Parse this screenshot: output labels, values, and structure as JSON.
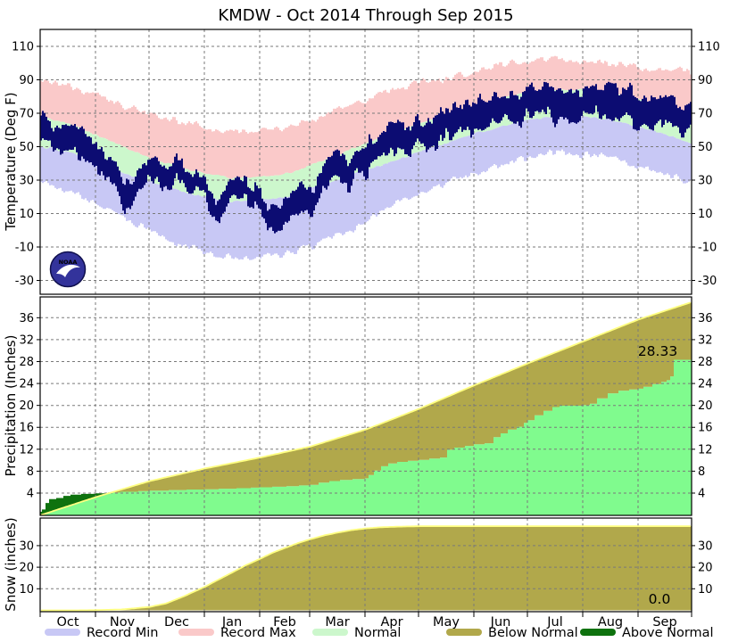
{
  "title": "KMDW - Oct 2014 Through Sep 2015",
  "logo": {
    "text": "NOAA"
  },
  "x_axis": {
    "month_labels": [
      "Oct",
      "Nov",
      "Dec",
      "Jan",
      "Feb",
      "Mar",
      "Apr",
      "May",
      "Jun",
      "Jul",
      "Aug",
      "Sep"
    ],
    "month_start_days": [
      0,
      31,
      61,
      92,
      123,
      151,
      182,
      212,
      243,
      273,
      304,
      335,
      365
    ]
  },
  "colors": {
    "record_min": "#c8c8f5",
    "record_max": "#fac9c9",
    "normal_band": "#ccf7cc",
    "actual_temperature": "#0c0c72",
    "actual_precip": "#80fb8e",
    "below_normal": "#b1a84b",
    "above_normal": "#0e720e",
    "normal_line": "#ffff80",
    "grid": "#7a7a7a",
    "axis": "#000000"
  },
  "legend": {
    "items": [
      {
        "label": "Record Min",
        "color": "#c8c8f5"
      },
      {
        "label": "Record Max",
        "color": "#fac9c9"
      },
      {
        "label": "Normal",
        "color": "#ccf7cc"
      },
      {
        "label": "Below Normal",
        "color": "#b1a84b"
      },
      {
        "label": "Above Normal",
        "color": "#0e720e"
      }
    ]
  },
  "chart_data": [
    {
      "id": "temperature",
      "type": "band-area",
      "ylabel": "Temperature (Deg F)",
      "yticks": [
        110,
        90,
        70,
        50,
        30,
        10,
        -10,
        -30
      ],
      "ylim": [
        -38,
        120
      ],
      "series": {
        "record_high": [
          [
            0,
            90
          ],
          [
            15,
            87
          ],
          [
            46,
            74
          ],
          [
            76,
            65
          ],
          [
            92,
            62
          ],
          [
            107,
            59
          ],
          [
            123,
            60
          ],
          [
            138,
            61
          ],
          [
            151,
            66
          ],
          [
            166,
            73
          ],
          [
            182,
            78
          ],
          [
            197,
            84
          ],
          [
            212,
            88
          ],
          [
            227,
            91
          ],
          [
            243,
            95
          ],
          [
            258,
            99
          ],
          [
            273,
            101
          ],
          [
            288,
            103
          ],
          [
            304,
            101
          ],
          [
            319,
            100
          ],
          [
            335,
            98
          ],
          [
            350,
            97
          ],
          [
            365,
            94
          ]
        ],
        "normal_high": [
          [
            0,
            68
          ],
          [
            15,
            64
          ],
          [
            31,
            57
          ],
          [
            46,
            50
          ],
          [
            61,
            43
          ],
          [
            76,
            38
          ],
          [
            92,
            34
          ],
          [
            107,
            31
          ],
          [
            123,
            32
          ],
          [
            138,
            34
          ],
          [
            151,
            39
          ],
          [
            166,
            45
          ],
          [
            182,
            52
          ],
          [
            197,
            58
          ],
          [
            212,
            64
          ],
          [
            227,
            69
          ],
          [
            243,
            75
          ],
          [
            258,
            79
          ],
          [
            273,
            82
          ],
          [
            288,
            84
          ],
          [
            304,
            84
          ],
          [
            319,
            82
          ],
          [
            335,
            78
          ],
          [
            350,
            74
          ],
          [
            365,
            69
          ]
        ],
        "normal_low": [
          [
            0,
            50
          ],
          [
            15,
            47
          ],
          [
            31,
            41
          ],
          [
            46,
            34
          ],
          [
            61,
            29
          ],
          [
            76,
            24
          ],
          [
            92,
            20
          ],
          [
            107,
            17
          ],
          [
            123,
            18
          ],
          [
            138,
            20
          ],
          [
            151,
            25
          ],
          [
            166,
            30
          ],
          [
            182,
            36
          ],
          [
            197,
            41
          ],
          [
            212,
            47
          ],
          [
            227,
            52
          ],
          [
            243,
            58
          ],
          [
            258,
            62
          ],
          [
            273,
            66
          ],
          [
            288,
            68
          ],
          [
            304,
            68
          ],
          [
            319,
            66
          ],
          [
            335,
            62
          ],
          [
            350,
            57
          ],
          [
            365,
            52
          ]
        ],
        "record_low": [
          [
            0,
            28
          ],
          [
            15,
            24
          ],
          [
            31,
            15
          ],
          [
            46,
            7
          ],
          [
            61,
            0
          ],
          [
            76,
            -8
          ],
          [
            92,
            -13
          ],
          [
            107,
            -17
          ],
          [
            123,
            -16
          ],
          [
            138,
            -14
          ],
          [
            151,
            -10
          ],
          [
            166,
            -4
          ],
          [
            182,
            5
          ],
          [
            197,
            16
          ],
          [
            212,
            22
          ],
          [
            227,
            28
          ],
          [
            243,
            34
          ],
          [
            258,
            39
          ],
          [
            273,
            43
          ],
          [
            288,
            47
          ],
          [
            304,
            45
          ],
          [
            319,
            44
          ],
          [
            335,
            38
          ],
          [
            350,
            33
          ],
          [
            365,
            28
          ]
        ],
        "actual_high": [
          [
            0,
            70
          ],
          [
            8,
            62
          ],
          [
            15,
            64
          ],
          [
            25,
            58
          ],
          [
            31,
            52
          ],
          [
            40,
            44
          ],
          [
            47,
            28
          ],
          [
            52,
            30
          ],
          [
            58,
            42
          ],
          [
            61,
            40
          ],
          [
            70,
            38
          ],
          [
            76,
            40
          ],
          [
            85,
            33
          ],
          [
            92,
            30
          ],
          [
            98,
            14
          ],
          [
            103,
            28
          ],
          [
            110,
            32
          ],
          [
            118,
            28
          ],
          [
            123,
            22
          ],
          [
            130,
            12
          ],
          [
            136,
            16
          ],
          [
            142,
            20
          ],
          [
            148,
            24
          ],
          [
            153,
            22
          ],
          [
            158,
            40
          ],
          [
            166,
            46
          ],
          [
            172,
            42
          ],
          [
            178,
            52
          ],
          [
            182,
            54
          ],
          [
            190,
            58
          ],
          [
            197,
            61
          ],
          [
            205,
            64
          ],
          [
            212,
            66
          ],
          [
            220,
            68
          ],
          [
            227,
            71
          ],
          [
            235,
            74
          ],
          [
            243,
            77
          ],
          [
            250,
            78
          ],
          [
            258,
            80
          ],
          [
            265,
            82
          ],
          [
            273,
            83
          ],
          [
            280,
            85
          ],
          [
            288,
            85
          ],
          [
            296,
            84
          ],
          [
            304,
            84
          ],
          [
            312,
            85
          ],
          [
            319,
            84
          ],
          [
            327,
            82
          ],
          [
            335,
            81
          ],
          [
            342,
            80
          ],
          [
            350,
            80
          ],
          [
            358,
            76
          ],
          [
            365,
            74
          ]
        ],
        "actual_low": [
          [
            0,
            54
          ],
          [
            8,
            46
          ],
          [
            15,
            48
          ],
          [
            25,
            42
          ],
          [
            31,
            38
          ],
          [
            40,
            30
          ],
          [
            47,
            12
          ],
          [
            52,
            18
          ],
          [
            58,
            30
          ],
          [
            61,
            28
          ],
          [
            70,
            26
          ],
          [
            76,
            28
          ],
          [
            85,
            22
          ],
          [
            92,
            18
          ],
          [
            98,
            2
          ],
          [
            103,
            15
          ],
          [
            110,
            20
          ],
          [
            118,
            16
          ],
          [
            123,
            10
          ],
          [
            130,
            -2
          ],
          [
            136,
            2
          ],
          [
            142,
            6
          ],
          [
            148,
            10
          ],
          [
            153,
            8
          ],
          [
            158,
            25
          ],
          [
            166,
            30
          ],
          [
            172,
            28
          ],
          [
            178,
            36
          ],
          [
            182,
            38
          ],
          [
            190,
            42
          ],
          [
            197,
            44
          ],
          [
            205,
            47
          ],
          [
            212,
            50
          ],
          [
            220,
            52
          ],
          [
            227,
            54
          ],
          [
            235,
            58
          ],
          [
            243,
            61
          ],
          [
            250,
            62
          ],
          [
            258,
            64
          ],
          [
            265,
            66
          ],
          [
            273,
            67
          ],
          [
            280,
            69
          ],
          [
            288,
            69
          ],
          [
            296,
            68
          ],
          [
            304,
            68
          ],
          [
            312,
            69
          ],
          [
            319,
            68
          ],
          [
            327,
            66
          ],
          [
            335,
            64
          ],
          [
            342,
            63
          ],
          [
            350,
            63
          ],
          [
            358,
            60
          ],
          [
            365,
            58
          ]
        ]
      },
      "noise": {
        "record": 3.2,
        "normal": 0.9,
        "actual_mid": 8,
        "actual_spread": 0.45,
        "seed": 7
      }
    },
    {
      "id": "precipitation",
      "type": "cumulative-area",
      "ylabel": "Precipitation (Inches)",
      "yticks": [
        36,
        32,
        28,
        24,
        20,
        16,
        12,
        8,
        4
      ],
      "ylim": [
        0,
        39.8
      ],
      "normal": [
        [
          0,
          0
        ],
        [
          31,
          3.3
        ],
        [
          61,
          6.2
        ],
        [
          92,
          8.5
        ],
        [
          123,
          10.5
        ],
        [
          151,
          12.5
        ],
        [
          182,
          15.6
        ],
        [
          212,
          19.4
        ],
        [
          243,
          23.7
        ],
        [
          273,
          27.7
        ],
        [
          304,
          31.7
        ],
        [
          335,
          35.7
        ],
        [
          365,
          38.9
        ]
      ],
      "actual": [
        [
          0,
          0.6
        ],
        [
          1,
          1.0
        ],
        [
          3,
          2.2
        ],
        [
          5,
          2.9
        ],
        [
          9,
          3.1
        ],
        [
          13,
          3.5
        ],
        [
          17,
          3.7
        ],
        [
          23,
          3.85
        ],
        [
          31,
          3.95
        ],
        [
          38,
          4.1
        ],
        [
          45,
          4.25
        ],
        [
          55,
          4.35
        ],
        [
          61,
          4.45
        ],
        [
          72,
          4.55
        ],
        [
          82,
          4.65
        ],
        [
          92,
          4.7
        ],
        [
          100,
          4.8
        ],
        [
          110,
          4.9
        ],
        [
          118,
          5.0
        ],
        [
          123,
          5.05
        ],
        [
          130,
          5.15
        ],
        [
          138,
          5.25
        ],
        [
          145,
          5.4
        ],
        [
          151,
          5.5
        ],
        [
          156,
          5.9
        ],
        [
          162,
          6.2
        ],
        [
          168,
          6.4
        ],
        [
          175,
          6.55
        ],
        [
          182,
          6.7
        ],
        [
          184,
          7.3
        ],
        [
          187,
          8.1
        ],
        [
          191,
          8.9
        ],
        [
          195,
          9.4
        ],
        [
          200,
          9.7
        ],
        [
          206,
          9.9
        ],
        [
          212,
          10.05
        ],
        [
          218,
          10.3
        ],
        [
          224,
          10.5
        ],
        [
          228,
          11.9
        ],
        [
          232,
          12.3
        ],
        [
          238,
          12.6
        ],
        [
          243,
          12.9
        ],
        [
          249,
          13.1
        ],
        [
          254,
          14.2
        ],
        [
          258,
          14.9
        ],
        [
          262,
          15.6
        ],
        [
          267,
          16.1
        ],
        [
          271,
          16.8
        ],
        [
          273,
          17.3
        ],
        [
          277,
          18.2
        ],
        [
          282,
          19.0
        ],
        [
          287,
          19.7
        ],
        [
          291,
          19.95
        ],
        [
          304,
          20.05
        ],
        [
          308,
          20.3
        ],
        [
          312,
          21.3
        ],
        [
          318,
          22.2
        ],
        [
          324,
          22.7
        ],
        [
          330,
          22.9
        ],
        [
          335,
          23.05
        ],
        [
          338,
          23.4
        ],
        [
          343,
          23.9
        ],
        [
          348,
          24.3
        ],
        [
          351,
          24.6
        ],
        [
          353,
          25.3
        ],
        [
          355,
          28.33
        ],
        [
          365,
          28.33
        ]
      ],
      "annotation": {
        "text": "28.33",
        "day": 346,
        "value": 29.0
      }
    },
    {
      "id": "snow",
      "type": "cumulative-area",
      "ylabel": "Snow (inches)",
      "yticks": [
        30,
        20,
        10
      ],
      "ylim": [
        0,
        42.8
      ],
      "normal": [
        [
          0,
          0
        ],
        [
          20,
          0
        ],
        [
          31,
          0.1
        ],
        [
          45,
          0.4
        ],
        [
          61,
          1.6
        ],
        [
          70,
          3.2
        ],
        [
          80,
          6.5
        ],
        [
          92,
          11
        ],
        [
          100,
          14.5
        ],
        [
          107,
          17.5
        ],
        [
          115,
          21
        ],
        [
          123,
          24
        ],
        [
          130,
          26.8
        ],
        [
          137,
          29
        ],
        [
          144,
          31.2
        ],
        [
          151,
          33
        ],
        [
          159,
          34.8
        ],
        [
          166,
          36
        ],
        [
          174,
          37.2
        ],
        [
          182,
          38
        ],
        [
          190,
          38.5
        ],
        [
          200,
          38.8
        ],
        [
          212,
          39
        ],
        [
          365,
          39
        ]
      ],
      "actual": [
        [
          0,
          0
        ],
        [
          365,
          0
        ]
      ],
      "annotation": {
        "text": "0.0",
        "day": 347,
        "value": 3.4
      }
    }
  ]
}
